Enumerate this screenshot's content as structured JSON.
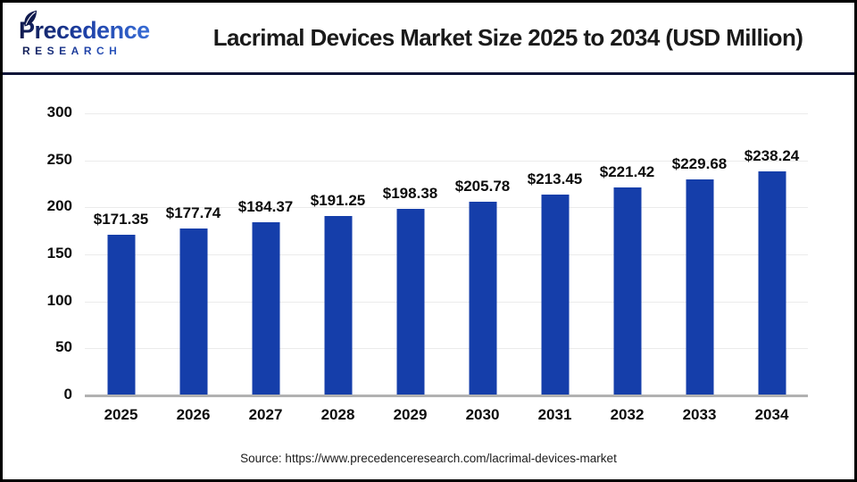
{
  "header": {
    "logo": {
      "name": "Precedence",
      "subname": "RESEARCH"
    },
    "title": "Lacrimal Devices Market Size 2025 to 2034 (USD Million)"
  },
  "chart_data": {
    "type": "bar",
    "title": "Lacrimal Devices Market Size 2025 to 2034 (USD Million)",
    "xlabel": "",
    "ylabel": "",
    "unit": "USD Million",
    "categories": [
      "2025",
      "2026",
      "2027",
      "2028",
      "2029",
      "2030",
      "2031",
      "2032",
      "2033",
      "2034"
    ],
    "values": [
      171.35,
      177.74,
      184.37,
      191.25,
      198.38,
      205.78,
      213.45,
      221.42,
      229.68,
      238.24
    ],
    "value_label_prefix": "$",
    "ylim": [
      0,
      300
    ],
    "yticks": [
      0,
      50,
      100,
      150,
      200,
      250,
      300
    ],
    "grid": true,
    "legend": false,
    "bar_color": "#153eaa"
  },
  "footer": {
    "source": "Source: https://www.precedenceresearch.com/lacrimal-devices-market"
  },
  "colors": {
    "bar": "#153eaa",
    "divider": "#0e1538",
    "frame": "#000000",
    "gridline": "#ebebeb",
    "axis_line": "#b1b1b1",
    "title_text": "#1a1a1a",
    "logo_dark": "#101a4e",
    "logo_light": "#3c74dd"
  }
}
